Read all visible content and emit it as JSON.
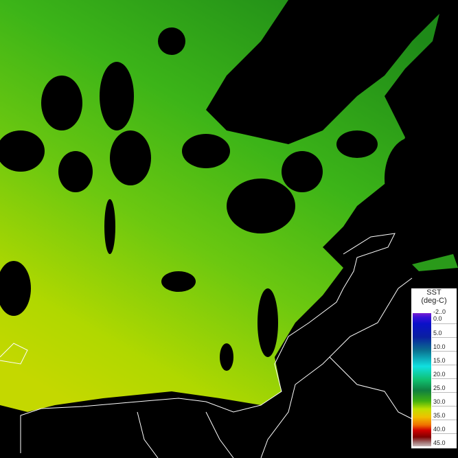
{
  "map": {
    "variable": "SST",
    "legend": {
      "title": "SST",
      "unit": "(deg-C)",
      "ticks": [
        "-2..0",
        "0.0",
        "5.0",
        "10.0",
        "15.0",
        "20.0",
        "25.0",
        "30.0",
        "35.0",
        "40.0",
        "45.0"
      ],
      "colors": {
        "cold": "#3a10d8",
        "mid": "#10e0e0",
        "green": "#108040",
        "warm": "#c0e000",
        "hot": "#d00000",
        "max": "#c8b8b8"
      }
    },
    "colors": {
      "ocean_dark": "#2a9a1a",
      "ocean_mid": "#4cc414",
      "ocean_warm": "#a8d800",
      "cloud": "#000000",
      "coastline": "#ffffff"
    }
  }
}
